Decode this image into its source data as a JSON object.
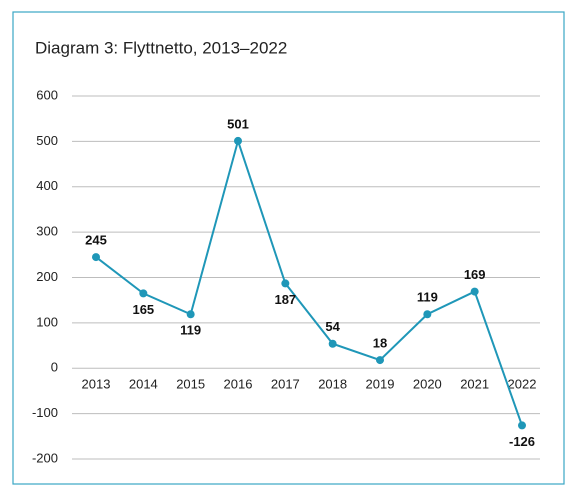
{
  "chart_data": {
    "type": "line",
    "title": "Diagram 3: Flyttnetto, 2013–2022",
    "categories": [
      "2013",
      "2014",
      "2015",
      "2016",
      "2017",
      "2018",
      "2019",
      "2020",
      "2021",
      "2022"
    ],
    "series": [
      {
        "name": "Flyttnetto",
        "color": "#1f97b8",
        "values": [
          245,
          165,
          119,
          501,
          187,
          54,
          18,
          119,
          169,
          -126
        ]
      }
    ],
    "ylim": [
      -200,
      600
    ],
    "yticks": [
      -200,
      -100,
      0,
      100,
      200,
      300,
      400,
      500,
      600
    ],
    "grid": true
  }
}
